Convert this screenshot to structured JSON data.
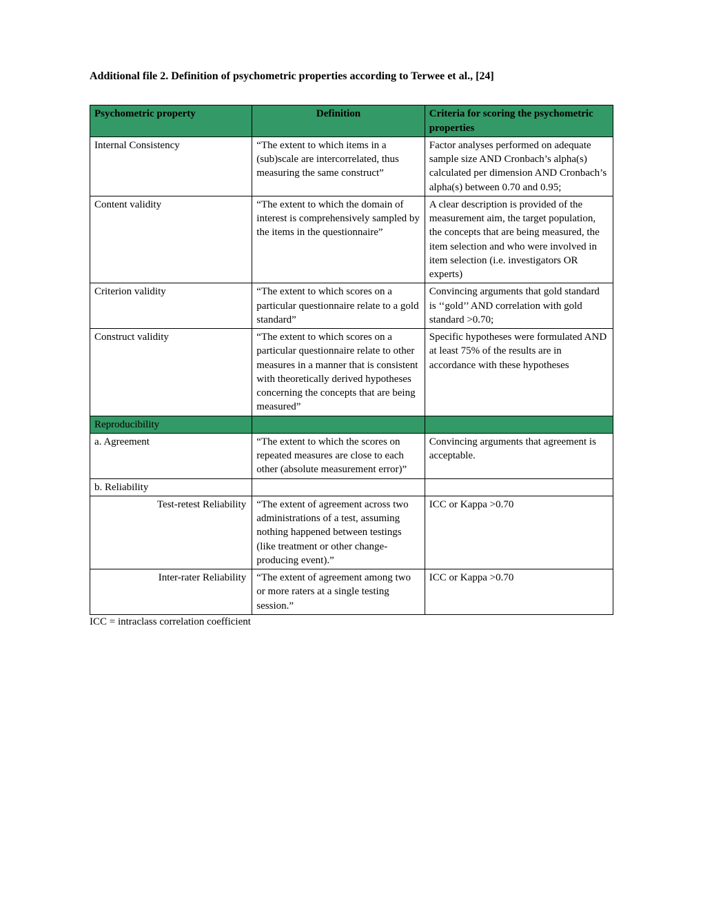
{
  "title": "Additional file 2. Definition of psychometric properties according to Terwee et al., [24]",
  "columns": {
    "c0": "Psychometric property",
    "c1": "Definition",
    "c2": "Criteria for scoring the psychometric properties"
  },
  "rows": {
    "r0": {
      "property": "Internal Consistency",
      "definition": "“The extent to which items in a (sub)scale are intercorrelated, thus measuring the same construct”",
      "criteria": "Factor analyses performed on adequate sample size AND Cronbach’s alpha(s) calculated per dimension AND Cronbach’s alpha(s) between 0.70 and 0.95;"
    },
    "r1": {
      "property": "Content validity",
      "definition": "“The extent to which the domain of interest is comprehensively sampled by the items in the questionnaire”",
      "criteria": "A clear description is provided of the measurement aim, the target population, the concepts that are being measured, the item selection and who were involved in item selection (i.e. investigators OR experts)"
    },
    "r2": {
      "property": "Criterion validity",
      "definition": "“The extent to which scores on a particular questionnaire relate to a gold standard”",
      "criteria": "Convincing arguments that gold standard is ‘‘gold’’ AND correlation with gold standard >0.70;"
    },
    "r3": {
      "property": "Construct validity",
      "definition": "“The extent to which scores on a particular questionnaire relate to other measures in a manner that is consistent with theoretically derived hypotheses concerning the concepts that are being measured”",
      "criteria": "Specific hypotheses were formulated AND at least 75% of the results are in accordance with these hypotheses"
    },
    "sectionReproducibility": "Reproducibility",
    "r4": {
      "property": "a. Agreement",
      "definition": "“The extent to which the scores on repeated measures are close to each other (absolute measurement error)”",
      "criteria": "Convincing arguments that agreement is acceptable."
    },
    "r5": {
      "property": "b. Reliability"
    },
    "r6": {
      "property": "Test-retest Reliability",
      "definition": "“The extent of agreement across two administrations of a test, assuming nothing happened between testings (like treatment or other change-producing event).”",
      "criteria": "ICC or Kappa >0.70"
    },
    "r7": {
      "property": "Inter-rater Reliability",
      "definition": "“The extent of agreement among two or more raters at a single testing session.”",
      "criteria": "ICC or Kappa >0.70"
    }
  },
  "footnote": "ICC = intraclass correlation coefficient",
  "styling": {
    "header_bg": "#339966",
    "border_color": "#000000",
    "font_family": "Times New Roman",
    "body_font_size": 15,
    "title_font_size": 16,
    "page_bg": "#ffffff",
    "column_widths_pct": [
      31,
      33,
      36
    ]
  }
}
